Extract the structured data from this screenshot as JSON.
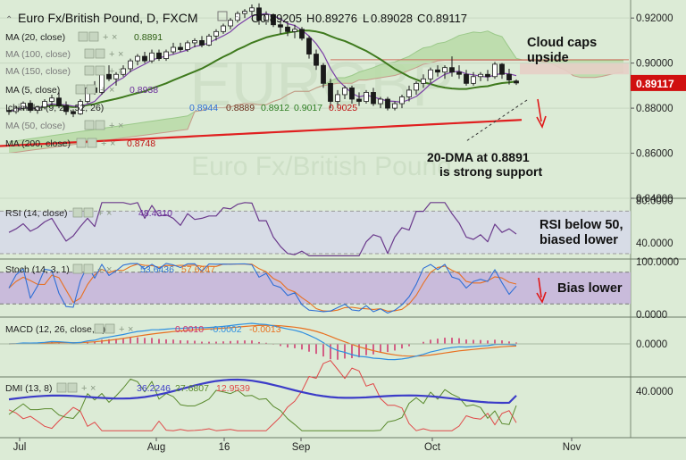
{
  "header": {
    "symbol": "Euro Fx/British Pound, D, FXCM",
    "ohlc": [
      {
        "label": "O",
        "value": "0.89205"
      },
      {
        "label": "H",
        "value": "0.89276"
      },
      {
        "label": "L",
        "value": "0.89028"
      },
      {
        "label": "C",
        "value": "0.89117"
      }
    ]
  },
  "watermark": "EURGBP",
  "watermark_sub": "Euro Fx/British Pound",
  "colors": {
    "background": "#dcebd6",
    "cloud": "#b9dba7",
    "cloud_bear": "#e6cfc6",
    "ma20": "#3f7a1e",
    "ma5": "#7b3fa6",
    "ma200": "#e02020",
    "rsi": "#6b3a8c",
    "stoch_k": "#2f6fd6",
    "stoch_d": "#e87020",
    "macd": "#2f8fe0",
    "signal": "#e87020",
    "hist": "#d0306a",
    "dmi_adx": "#3c3cc8",
    "dmi_plus": "#5a8a2e",
    "dmi_minus": "#e04848",
    "price_tag": "#d01010"
  },
  "indicators": {
    "ma20": {
      "label": "MA (20, close)",
      "value": "0.8891"
    },
    "ma100": {
      "label": "MA (100, close)"
    },
    "ma150": {
      "label": "MA (150, close)"
    },
    "ma5": {
      "label": "MA (5, close)",
      "value": "0.8938"
    },
    "ichimoku": {
      "label": "Ichimoku (9, 26, 52, 26)",
      "values": [
        "0.8944",
        "0.8889",
        "0.8912",
        "0.9017",
        "0.9025"
      ]
    },
    "ma_extra": {
      "label": "MA (50, close)"
    },
    "ma200": {
      "label": "MA (200, close)",
      "value": "0.8748"
    }
  },
  "chart_data": [
    {
      "type": "candlestick",
      "title": "Euro Fx/British Pound, D, FXCM",
      "x_ticks": [
        "Jul",
        "Aug",
        "16",
        "Sep",
        "Oct",
        "Nov"
      ],
      "y_ticks": [
        "0.92000",
        "0.90000",
        "0.88000",
        "0.86000",
        "0.84000"
      ],
      "ylim": [
        0.84,
        0.928
      ],
      "last_price": "0.89117",
      "annotations": [
        "Cloud caps upside",
        "20-DMA at 0.8891 is strong support"
      ],
      "candles": [
        [
          0.879,
          0.88,
          0.877,
          0.8785
        ],
        [
          0.8785,
          0.881,
          0.8775,
          0.88
        ],
        [
          0.88,
          0.883,
          0.879,
          0.8822
        ],
        [
          0.8822,
          0.8835,
          0.878,
          0.879
        ],
        [
          0.879,
          0.881,
          0.8775,
          0.8805
        ],
        [
          0.8805,
          0.884,
          0.8795,
          0.883
        ],
        [
          0.883,
          0.886,
          0.8815,
          0.8845
        ],
        [
          0.8845,
          0.887,
          0.88,
          0.881
        ],
        [
          0.881,
          0.883,
          0.877,
          0.8785
        ],
        [
          0.8785,
          0.8795,
          0.876,
          0.8775
        ],
        [
          0.8775,
          0.884,
          0.877,
          0.883
        ],
        [
          0.883,
          0.89,
          0.882,
          0.889
        ],
        [
          0.889,
          0.892,
          0.886,
          0.887
        ],
        [
          0.887,
          0.896,
          0.886,
          0.895
        ],
        [
          0.895,
          0.899,
          0.892,
          0.893
        ],
        [
          0.893,
          0.896,
          0.89,
          0.895
        ],
        [
          0.895,
          0.899,
          0.894,
          0.8975
        ],
        [
          0.8975,
          0.902,
          0.896,
          0.901
        ],
        [
          0.901,
          0.904,
          0.899,
          0.903
        ],
        [
          0.903,
          0.905,
          0.9,
          0.901
        ],
        [
          0.901,
          0.906,
          0.9,
          0.9045
        ],
        [
          0.9045,
          0.906,
          0.901,
          0.902
        ],
        [
          0.902,
          0.906,
          0.901,
          0.905
        ],
        [
          0.905,
          0.909,
          0.904,
          0.907
        ],
        [
          0.907,
          0.909,
          0.905,
          0.906
        ],
        [
          0.906,
          0.91,
          0.905,
          0.909
        ],
        [
          0.909,
          0.911,
          0.907,
          0.91
        ],
        [
          0.91,
          0.912,
          0.907,
          0.908
        ],
        [
          0.908,
          0.913,
          0.9075,
          0.912
        ],
        [
          0.912,
          0.915,
          0.91,
          0.914
        ],
        [
          0.914,
          0.9175,
          0.913,
          0.9165
        ],
        [
          0.9165,
          0.92,
          0.915,
          0.919
        ],
        [
          0.919,
          0.923,
          0.918,
          0.922
        ],
        [
          0.922,
          0.924,
          0.92,
          0.923
        ],
        [
          0.923,
          0.926,
          0.921,
          0.9245
        ],
        [
          0.9245,
          0.9265,
          0.917,
          0.919
        ],
        [
          0.919,
          0.923,
          0.917,
          0.9215
        ],
        [
          0.9215,
          0.922,
          0.916,
          0.917
        ],
        [
          0.917,
          0.919,
          0.913,
          0.916
        ],
        [
          0.916,
          0.918,
          0.912,
          0.914
        ],
        [
          0.914,
          0.917,
          0.911,
          0.915
        ],
        [
          0.915,
          0.916,
          0.91,
          0.911
        ],
        [
          0.911,
          0.912,
          0.902,
          0.904
        ],
        [
          0.904,
          0.906,
          0.897,
          0.899
        ],
        [
          0.899,
          0.9,
          0.889,
          0.891
        ],
        [
          0.891,
          0.893,
          0.88,
          0.883
        ],
        [
          0.883,
          0.888,
          0.88,
          0.886
        ],
        [
          0.886,
          0.89,
          0.884,
          0.889
        ],
        [
          0.889,
          0.89,
          0.882,
          0.884
        ],
        [
          0.884,
          0.887,
          0.881,
          0.883
        ],
        [
          0.883,
          0.888,
          0.882,
          0.887
        ],
        [
          0.887,
          0.889,
          0.881,
          0.882
        ],
        [
          0.882,
          0.885,
          0.88,
          0.884
        ],
        [
          0.884,
          0.885,
          0.879,
          0.88
        ],
        [
          0.88,
          0.883,
          0.879,
          0.882
        ],
        [
          0.882,
          0.886,
          0.88,
          0.885
        ],
        [
          0.885,
          0.89,
          0.883,
          0.888
        ],
        [
          0.888,
          0.892,
          0.886,
          0.891
        ],
        [
          0.891,
          0.895,
          0.889,
          0.893
        ],
        [
          0.893,
          0.898,
          0.891,
          0.897
        ],
        [
          0.897,
          0.899,
          0.894,
          0.896
        ],
        [
          0.896,
          0.899,
          0.893,
          0.898
        ],
        [
          0.898,
          0.903,
          0.894,
          0.896
        ],
        [
          0.896,
          0.899,
          0.893,
          0.895
        ],
        [
          0.895,
          0.897,
          0.89,
          0.891
        ],
        [
          0.891,
          0.896,
          0.89,
          0.894
        ],
        [
          0.894,
          0.896,
          0.892,
          0.895
        ],
        [
          0.895,
          0.897,
          0.892,
          0.894
        ],
        [
          0.894,
          0.9005,
          0.893,
          0.8995
        ],
        [
          0.8995,
          0.9,
          0.893,
          0.895
        ],
        [
          0.895,
          0.8975,
          0.8905,
          0.8925
        ],
        [
          0.89205,
          0.89276,
          0.89028,
          0.89117
        ]
      ]
    },
    {
      "type": "line",
      "name": "RSI",
      "label": "RSI (14, close)",
      "value": "48.4310",
      "y_ticks": [
        "80.0000",
        "40.0000"
      ],
      "ylim": [
        25,
        82
      ]
    },
    {
      "type": "line",
      "name": "Stoch",
      "label": "Stoch (14, 3, 1)",
      "values": [
        "53.6436",
        "57.6247"
      ],
      "y_ticks": [
        "100.0000",
        "0.0000"
      ],
      "ylim": [
        -5,
        105
      ]
    },
    {
      "type": "line",
      "name": "MACD",
      "label": "MACD (12, 26, close, 9)",
      "values": [
        "0.0010",
        "-0.0002",
        "-0.0013"
      ],
      "y_ticks": [
        "0.0000"
      ]
    },
    {
      "type": "line",
      "name": "DMI",
      "label": "DMI (13, 8)",
      "values": [
        "36.2246",
        "27.6807",
        "12.9539"
      ],
      "y_ticks": [
        "40.0000"
      ]
    }
  ],
  "sub_annotations": {
    "rsi": "RSI below 50, biased lower",
    "stoch": "Bias lower"
  }
}
